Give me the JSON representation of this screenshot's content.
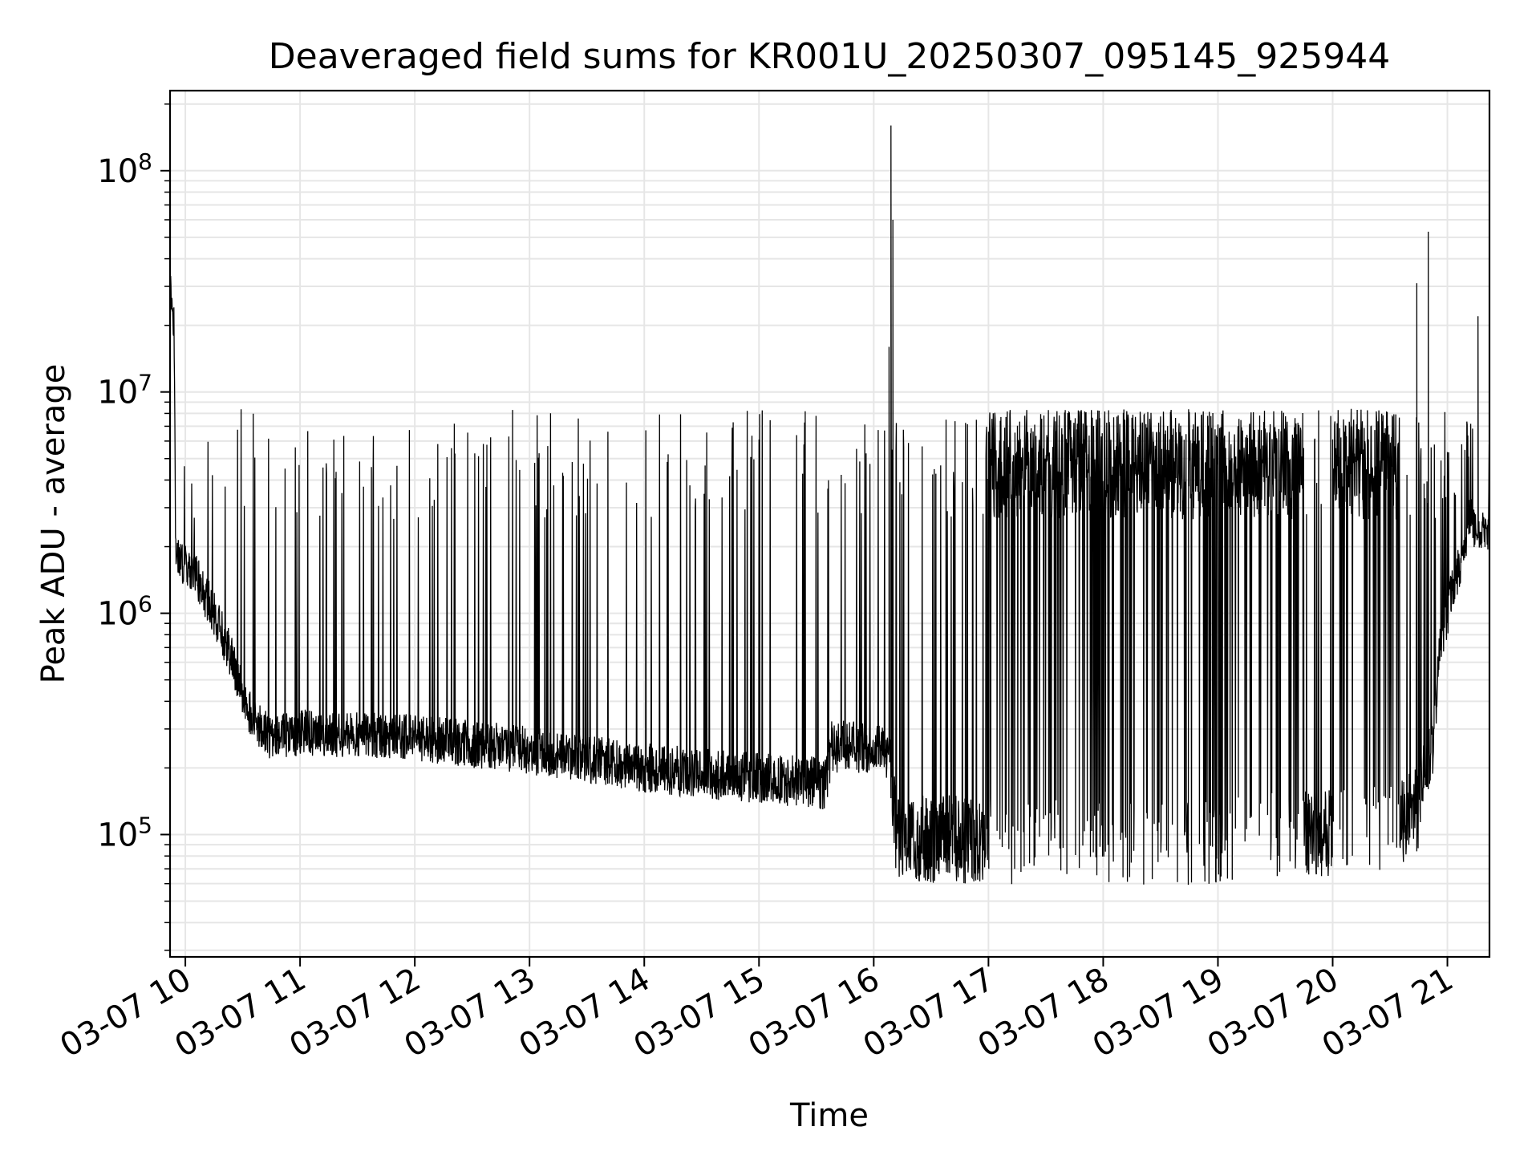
{
  "chart_data": {
    "type": "line",
    "title": "Deaveraged field sums for KR001U_20250307_095145_925944",
    "xlabel": "Time",
    "ylabel": "Peak ADU - average",
    "y_scale": "log",
    "xlim": [
      "2025-03-07 09:52",
      "2025-03-07 21:22"
    ],
    "ylim": [
      28000,
      230000000
    ],
    "grid": true,
    "x_tick_labels": [
      {
        "t": "2025-03-07 10:00",
        "label": "03-07 10"
      },
      {
        "t": "2025-03-07 11:00",
        "label": "03-07 11"
      },
      {
        "t": "2025-03-07 12:00",
        "label": "03-07 12"
      },
      {
        "t": "2025-03-07 13:00",
        "label": "03-07 13"
      },
      {
        "t": "2025-03-07 14:00",
        "label": "03-07 14"
      },
      {
        "t": "2025-03-07 15:00",
        "label": "03-07 15"
      },
      {
        "t": "2025-03-07 16:00",
        "label": "03-07 16"
      },
      {
        "t": "2025-03-07 17:00",
        "label": "03-07 17"
      },
      {
        "t": "2025-03-07 18:00",
        "label": "03-07 18"
      },
      {
        "t": "2025-03-07 19:00",
        "label": "03-07 19"
      },
      {
        "t": "2025-03-07 20:00",
        "label": "03-07 20"
      },
      {
        "t": "2025-03-07 21:00",
        "label": "03-07 21"
      }
    ],
    "y_tick_labels": [
      {
        "value": 100000,
        "base": "10",
        "exp": "5"
      },
      {
        "value": 1000000,
        "base": "10",
        "exp": "6"
      },
      {
        "value": 10000000,
        "base": "10",
        "exp": "7"
      },
      {
        "value": 100000000,
        "base": "10",
        "exp": "8"
      }
    ],
    "series": [
      {
        "color": "#000000",
        "baseline": [
          {
            "x": "2025-03-07 09:52",
            "y": 33000000
          },
          {
            "x": "2025-03-07 09:54",
            "y": 20000000
          },
          {
            "x": "2025-03-07 09:55",
            "y": 1800000
          },
          {
            "x": "2025-03-07 10:05",
            "y": 1500000
          },
          {
            "x": "2025-03-07 10:15",
            "y": 1000000
          },
          {
            "x": "2025-03-07 10:25",
            "y": 600000
          },
          {
            "x": "2025-03-07 10:35",
            "y": 330000
          },
          {
            "x": "2025-03-07 10:45",
            "y": 270000
          },
          {
            "x": "2025-03-07 11:00",
            "y": 290000
          },
          {
            "x": "2025-03-07 12:00",
            "y": 275000
          },
          {
            "x": "2025-03-07 13:00",
            "y": 240000
          },
          {
            "x": "2025-03-07 14:00",
            "y": 200000
          },
          {
            "x": "2025-03-07 15:00",
            "y": 180000
          },
          {
            "x": "2025-03-07 15:35",
            "y": 170000
          },
          {
            "x": "2025-03-07 15:38",
            "y": 250000
          },
          {
            "x": "2025-03-07 15:55",
            "y": 250000
          },
          {
            "x": "2025-03-07 16:08",
            "y": 230000
          },
          {
            "x": "2025-03-07 16:12",
            "y": 95000
          },
          {
            "x": "2025-03-07 17:00",
            "y": 95000
          },
          {
            "x": "2025-03-07 18:00",
            "y": 90000
          },
          {
            "x": "2025-03-07 19:00",
            "y": 95000
          },
          {
            "x": "2025-03-07 19:50",
            "y": 100000
          },
          {
            "x": "2025-03-07 20:30",
            "y": 110000
          },
          {
            "x": "2025-03-07 20:45",
            "y": 130000
          },
          {
            "x": "2025-03-07 20:52",
            "y": 250000
          },
          {
            "x": "2025-03-07 20:57",
            "y": 800000
          },
          {
            "x": "2025-03-07 21:05",
            "y": 1500000
          },
          {
            "x": "2025-03-07 21:12",
            "y": 2500000
          },
          {
            "x": "2025-03-07 21:22",
            "y": 2300000
          }
        ],
        "noise_band_dex": [
          {
            "x": "2025-03-07 09:52",
            "dex": 0.1
          },
          {
            "x": "2025-03-07 16:08",
            "dex": 0.12
          },
          {
            "x": "2025-03-07 16:12",
            "dex": 0.2
          },
          {
            "x": "2025-03-07 20:50",
            "dex": 0.2
          },
          {
            "x": "2025-03-07 20:55",
            "dex": 0.12
          },
          {
            "x": "2025-03-07 21:22",
            "dex": 0.08
          }
        ],
        "spike_rate_per_min": [
          {
            "from": "2025-03-07 09:52",
            "to": "2025-03-07 16:08",
            "rate": 0.35
          },
          {
            "from": "2025-03-07 16:08",
            "to": "2025-03-07 17:00",
            "rate": 0.7
          },
          {
            "from": "2025-03-07 17:00",
            "to": "2025-03-07 19:45",
            "rate": 5.0
          },
          {
            "from": "2025-03-07 19:45",
            "to": "2025-03-07 20:00",
            "rate": 0.4
          },
          {
            "from": "2025-03-07 20:00",
            "to": "2025-03-07 20:35",
            "rate": 5.0
          },
          {
            "from": "2025-03-07 20:35",
            "to": "2025-03-07 21:22",
            "rate": 0.8
          }
        ],
        "spike_typical_peak": 5000000,
        "large_spikes": [
          {
            "x": "2025-03-07 16:09",
            "y": 160000000
          },
          {
            "x": "2025-03-07 16:10",
            "y": 60000000
          },
          {
            "x": "2025-03-07 16:08",
            "y": 16000000
          },
          {
            "x": "2025-03-07 20:44",
            "y": 31000000
          },
          {
            "x": "2025-03-07 20:50",
            "y": 53000000
          },
          {
            "x": "2025-03-07 21:16",
            "y": 22000000
          }
        ]
      }
    ]
  }
}
